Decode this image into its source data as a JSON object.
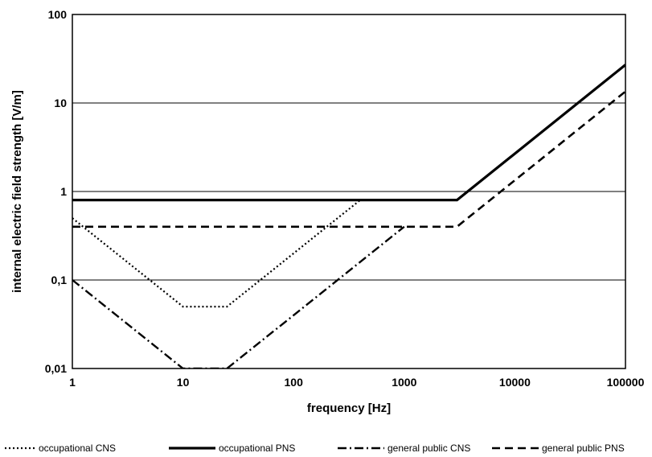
{
  "chart_data": {
    "type": "line",
    "xscale": "log",
    "yscale": "log",
    "xlim": [
      1,
      100000
    ],
    "ylim": [
      0.01,
      100
    ],
    "grid": "horizontal",
    "legend_placement": "bottom",
    "xlabel": "frequency [Hz]",
    "ylabel": "internal electric field strength [V/m]",
    "x_ticks": [
      {
        "value": 1,
        "label": "1"
      },
      {
        "value": 10,
        "label": "10"
      },
      {
        "value": 100,
        "label": "100"
      },
      {
        "value": 1000,
        "label": "1000"
      },
      {
        "value": 10000,
        "label": "10000"
      },
      {
        "value": 100000,
        "label": "100000"
      }
    ],
    "y_ticks": [
      {
        "value": 0.01,
        "label": "0,01"
      },
      {
        "value": 0.1,
        "label": "0,1"
      },
      {
        "value": 1,
        "label": "1"
      },
      {
        "value": 10,
        "label": "10"
      },
      {
        "value": 100,
        "label": "100"
      }
    ],
    "series": [
      {
        "name": "occupational CNS",
        "style": "dotted",
        "color": "#000000",
        "points": [
          [
            1,
            0.5
          ],
          [
            10,
            0.05
          ],
          [
            25,
            0.05
          ],
          [
            400,
            0.8
          ]
        ]
      },
      {
        "name": "occupational PNS",
        "style": "solid",
        "color": "#000000",
        "points": [
          [
            1,
            0.8
          ],
          [
            3000,
            0.8
          ],
          [
            100000,
            27
          ]
        ]
      },
      {
        "name": "general public CNS",
        "style": "dashdot",
        "color": "#000000",
        "points": [
          [
            1,
            0.1
          ],
          [
            10,
            0.01
          ],
          [
            25,
            0.01
          ],
          [
            1000,
            0.4
          ]
        ]
      },
      {
        "name": "general public PNS",
        "style": "dashed",
        "color": "#000000",
        "points": [
          [
            1,
            0.4
          ],
          [
            3000,
            0.4
          ],
          [
            100000,
            13.5
          ]
        ]
      }
    ]
  }
}
